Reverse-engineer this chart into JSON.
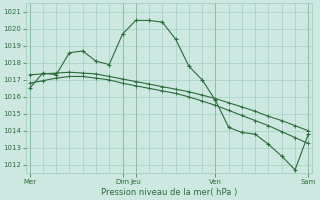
{
  "xlabel": "Pression niveau de la mer( hPa )",
  "ylim": [
    1011.5,
    1021.5
  ],
  "yticks": [
    1012,
    1013,
    1014,
    1015,
    1016,
    1017,
    1018,
    1019,
    1020,
    1021
  ],
  "bg_color": "#cce8e0",
  "grid_color": "#99ccbb",
  "line_color": "#2d6b3c",
  "xtick_major_pos": [
    0,
    7,
    8,
    14,
    21
  ],
  "xtick_major_labels": [
    "Mer",
    "Dim",
    "Jeu",
    "Ven",
    "Sam"
  ],
  "series1": [
    1016.5,
    1017.4,
    1017.3,
    1018.6,
    1018.7,
    1018.1,
    1017.9,
    1019.7,
    1020.5,
    1020.5,
    1020.4,
    1019.4,
    1017.8,
    1017.0,
    1015.8,
    1014.2,
    1013.9,
    1013.8,
    1013.2,
    1012.5,
    1011.7,
    1013.8
  ],
  "series2": [
    1017.3,
    1017.35,
    1017.4,
    1017.45,
    1017.4,
    1017.35,
    1017.2,
    1017.05,
    1016.9,
    1016.75,
    1016.6,
    1016.45,
    1016.3,
    1016.1,
    1015.9,
    1015.65,
    1015.4,
    1015.15,
    1014.85,
    1014.6,
    1014.3,
    1014.0
  ],
  "series3": [
    1016.8,
    1016.95,
    1017.1,
    1017.2,
    1017.2,
    1017.1,
    1017.0,
    1016.8,
    1016.65,
    1016.5,
    1016.35,
    1016.2,
    1016.0,
    1015.75,
    1015.5,
    1015.2,
    1014.9,
    1014.6,
    1014.3,
    1013.95,
    1013.6,
    1013.25
  ]
}
